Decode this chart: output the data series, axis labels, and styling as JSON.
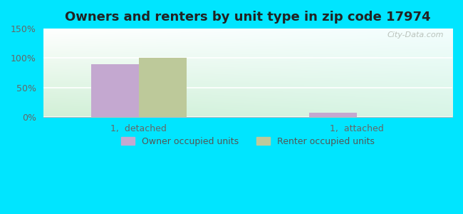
{
  "title": "Owners and renters by unit type in zip code 17974",
  "categories": [
    "1,  detached",
    "1,  attached"
  ],
  "owner_values": [
    90,
    8
  ],
  "renter_values": [
    100,
    0
  ],
  "owner_color": "#c4a8d0",
  "renter_color": "#bdc99a",
  "ylim": [
    0,
    150
  ],
  "yticks": [
    0,
    50,
    100,
    150
  ],
  "ytick_labels": [
    "0%",
    "50%",
    "100%",
    "150%"
  ],
  "legend_owner": "Owner occupied units",
  "legend_renter": "Renter occupied units",
  "bg_outer": "#00e5ff",
  "watermark": "City-Data.com",
  "bar_width": 0.35
}
